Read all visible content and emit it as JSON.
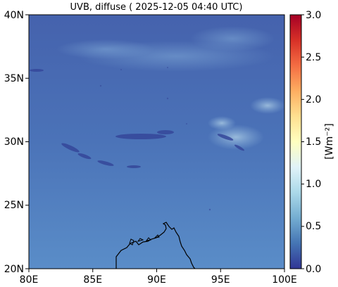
{
  "title": "UVB, diffuse ( 2025-12-05 04:40 UTC)",
  "map": {
    "x_ticks": [
      "80E",
      "85E",
      "90E",
      "95E",
      "100E"
    ],
    "y_ticks": [
      "40N",
      "35N",
      "30N",
      "25N",
      "20N"
    ],
    "x_range": [
      80,
      100
    ],
    "y_range": [
      20,
      40
    ]
  },
  "colorbar": {
    "label": "[Wm⁻²]",
    "ticks": [
      "3.0",
      "2.5",
      "2.0",
      "1.5",
      "1.0",
      "0.5",
      "0.0"
    ],
    "range": [
      0,
      3
    ],
    "colormap": "RdYlBu_r"
  },
  "colors": {
    "field_background": "#4a6fb5",
    "field_upper": "#4565ae",
    "field_lower": "#5585c4",
    "coastline": "#000000"
  }
}
